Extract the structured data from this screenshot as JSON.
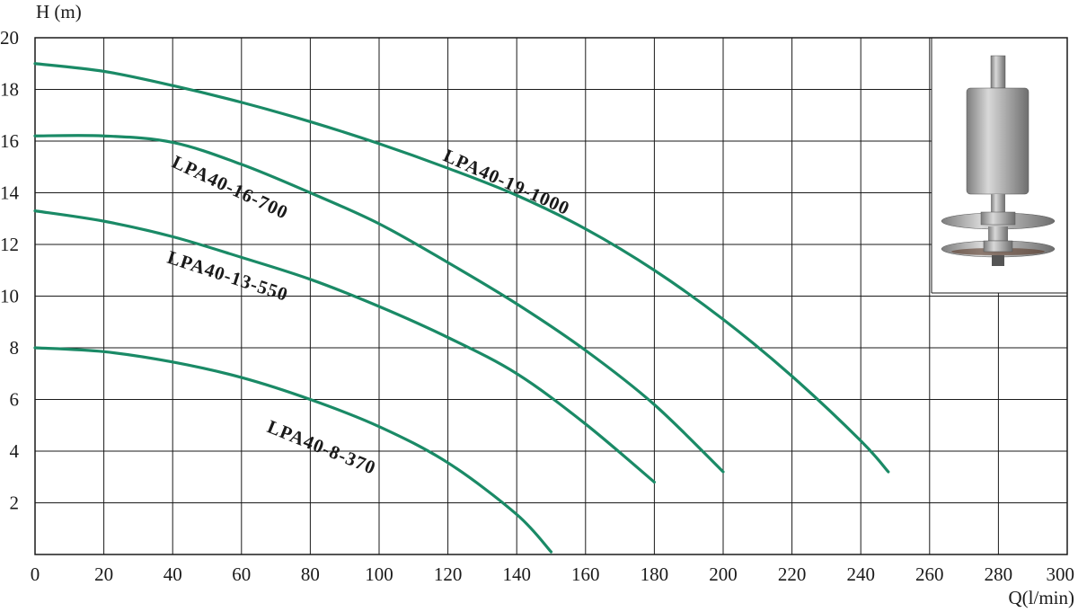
{
  "chart_data": {
    "type": "line",
    "xlabel": "Q(l/min)",
    "ylabel": "H (m)",
    "xlim": [
      0,
      300
    ],
    "ylim": [
      0,
      20
    ],
    "x_ticks": [
      "0",
      "20",
      "40",
      "60",
      "80",
      "100",
      "120",
      "140",
      "160",
      "180",
      "200",
      "220",
      "240",
      "260",
      "280",
      "300"
    ],
    "y_ticks": [
      "2",
      "4",
      "6",
      "8",
      "10",
      "12",
      "14",
      "16",
      "18",
      "20"
    ],
    "grid": true,
    "line_color": "#1a8a66",
    "series": [
      {
        "name": "LPA40-19-1000",
        "x": [
          0,
          20,
          40,
          60,
          80,
          100,
          120,
          140,
          160,
          180,
          200,
          220,
          240,
          248
        ],
        "y": [
          19.0,
          18.7,
          18.15,
          17.5,
          16.75,
          15.9,
          14.95,
          13.9,
          12.6,
          11.0,
          9.1,
          6.9,
          4.4,
          3.2
        ]
      },
      {
        "name": "LPA40-16-700",
        "x": [
          0,
          20,
          40,
          60,
          80,
          100,
          120,
          140,
          160,
          180,
          200
        ],
        "y": [
          16.2,
          16.2,
          15.95,
          15.1,
          14.0,
          12.8,
          11.3,
          9.7,
          7.9,
          5.8,
          3.2
        ]
      },
      {
        "name": "LPA40-13-550",
        "x": [
          0,
          20,
          40,
          60,
          80,
          100,
          120,
          140,
          160,
          180
        ],
        "y": [
          13.3,
          12.9,
          12.3,
          11.5,
          10.65,
          9.6,
          8.4,
          7.0,
          5.05,
          2.8
        ]
      },
      {
        "name": "LPA40-8-370",
        "x": [
          0,
          20,
          40,
          60,
          80,
          100,
          120,
          140,
          150
        ],
        "y": [
          8.0,
          7.85,
          7.45,
          6.85,
          6.0,
          4.95,
          3.55,
          1.55,
          0.1
        ]
      }
    ]
  }
}
